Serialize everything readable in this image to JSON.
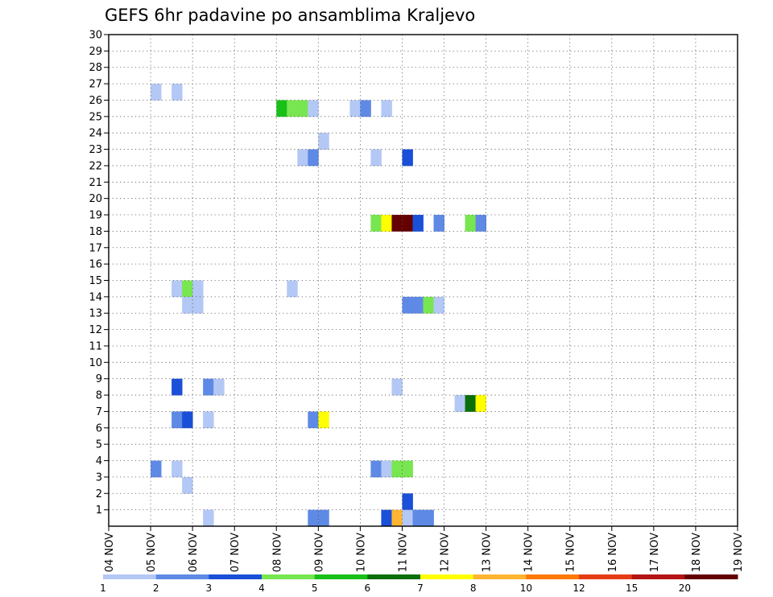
{
  "chart_data": {
    "type": "heatmap",
    "title": "GEFS 6hr padavine po ansamblima Kraljevo",
    "xlabel": "",
    "ylabel": "",
    "x_tick_labels": [
      "04 NOV",
      "05 NOV",
      "06 NOV",
      "07 NOV",
      "08 NOV",
      "09 NOV",
      "10 NOV",
      "11 NOV",
      "12 NOV",
      "13 NOV",
      "14 NOV",
      "15 NOV",
      "16 NOV",
      "17 NOV",
      "18 NOV",
      "19 NOV"
    ],
    "y_tick_labels": [
      "1",
      "2",
      "3",
      "4",
      "5",
      "6",
      "7",
      "8",
      "9",
      "10",
      "11",
      "12",
      "13",
      "14",
      "15",
      "16",
      "17",
      "18",
      "19",
      "20",
      "21",
      "22",
      "23",
      "24",
      "25",
      "26",
      "27",
      "28",
      "29",
      "30"
    ],
    "ylim": [
      0,
      30
    ],
    "x_steps_per_day": 4,
    "x_range_steps": [
      0,
      60
    ],
    "grid": true,
    "colorbar": {
      "position": "bottom",
      "labels": [
        "1",
        "2",
        "3",
        "4",
        "5",
        "6",
        "7",
        "8",
        "10",
        "12",
        "15",
        "20"
      ],
      "colors": [
        "#b4c8f5",
        "#5e8ae6",
        "#1a4fd8",
        "#78e650",
        "#18c018",
        "#0a6e0a",
        "#ffff00",
        "#ffb432",
        "#ff7800",
        "#e63c14",
        "#b41414",
        "#640000"
      ]
    },
    "cells": [
      [
        2,
        27,
        1
      ],
      [
        4,
        27,
        1
      ],
      [
        14,
        26,
        5
      ],
      [
        15,
        26,
        4
      ],
      [
        16,
        26,
        4
      ],
      [
        17,
        26,
        1
      ],
      [
        21,
        26,
        1
      ],
      [
        22,
        26,
        2
      ],
      [
        24,
        26,
        1
      ],
      [
        18,
        24,
        1
      ],
      [
        16,
        23,
        1
      ],
      [
        17,
        23,
        2
      ],
      [
        23,
        23,
        1
      ],
      [
        26,
        23,
        3
      ],
      [
        23,
        19,
        4
      ],
      [
        24,
        19,
        7
      ],
      [
        25,
        19,
        20
      ],
      [
        26,
        19,
        20
      ],
      [
        27,
        19,
        3
      ],
      [
        29,
        19,
        2
      ],
      [
        32,
        19,
        4
      ],
      [
        33,
        19,
        2
      ],
      [
        4,
        15,
        1
      ],
      [
        5,
        15,
        4
      ],
      [
        6,
        15,
        1
      ],
      [
        15,
        15,
        1
      ],
      [
        5,
        14,
        1
      ],
      [
        6,
        14,
        1
      ],
      [
        26,
        14,
        2
      ],
      [
        27,
        14,
        2
      ],
      [
        28,
        14,
        4
      ],
      [
        29,
        14,
        1
      ],
      [
        4,
        9,
        3
      ],
      [
        7,
        9,
        2
      ],
      [
        8,
        9,
        1
      ],
      [
        25,
        9,
        1
      ],
      [
        31,
        8,
        1
      ],
      [
        32,
        8,
        6
      ],
      [
        33,
        8,
        7
      ],
      [
        4,
        7,
        2
      ],
      [
        5,
        7,
        3
      ],
      [
        7,
        7,
        1
      ],
      [
        17,
        7,
        2
      ],
      [
        18,
        7,
        7
      ],
      [
        2,
        4,
        2
      ],
      [
        4,
        4,
        1
      ],
      [
        23,
        4,
        2
      ],
      [
        24,
        4,
        1
      ],
      [
        25,
        4,
        4
      ],
      [
        26,
        4,
        4
      ],
      [
        5,
        3,
        1
      ],
      [
        26,
        2,
        3
      ],
      [
        7,
        1,
        1
      ],
      [
        17,
        1,
        2
      ],
      [
        18,
        1,
        2
      ],
      [
        24,
        1,
        3
      ],
      [
        25,
        1,
        8
      ],
      [
        26,
        1,
        1
      ],
      [
        27,
        1,
        2
      ],
      [
        28,
        1,
        2
      ]
    ],
    "cells_x_offset_steps": 2
  }
}
